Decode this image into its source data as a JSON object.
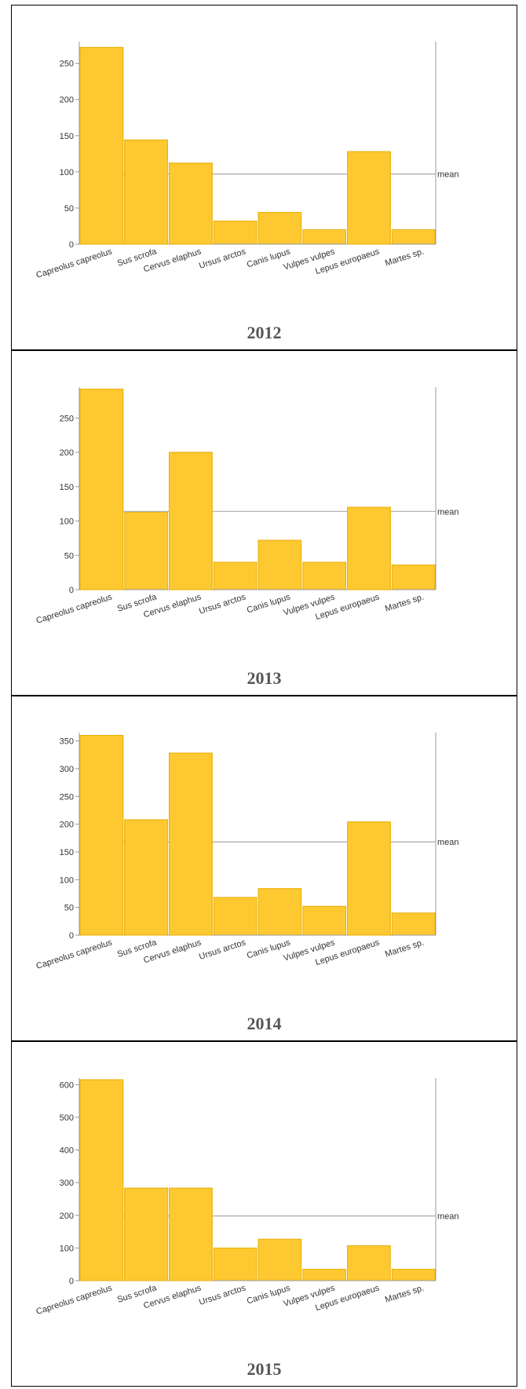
{
  "mean_label": "mean",
  "chart_data": [
    {
      "type": "bar",
      "title": "2012",
      "categories": [
        "Capreolus capreolus",
        "Sus scrofa",
        "Cervus elaphus",
        "Ursus arctos",
        "Canis lupus",
        "Vulpes vulpes",
        "Lepus europaeus",
        "Martes sp."
      ],
      "values": [
        272,
        144,
        112,
        32,
        44,
        20,
        128,
        20
      ],
      "mean": 97,
      "ylim": [
        0,
        280
      ],
      "yticks": [
        0,
        50,
        100,
        150,
        200,
        250
      ],
      "colors": {
        "bar": "#fdc830",
        "bar_stroke": "#e8b10a",
        "mean_line": "#aaaaaa"
      }
    },
    {
      "type": "bar",
      "title": "2013",
      "categories": [
        "Capreolus capreolus",
        "Sus scrofa",
        "Cervus elaphus",
        "Ursus arctos",
        "Canis lupus",
        "Vulpes vulpes",
        "Lepus europaeus",
        "Martes sp."
      ],
      "values": [
        292,
        113,
        200,
        40,
        72,
        40,
        120,
        36
      ],
      "mean": 114,
      "ylim": [
        0,
        295
      ],
      "yticks": [
        0,
        50,
        100,
        150,
        200,
        250
      ],
      "colors": {
        "bar": "#fdc830",
        "bar_stroke": "#e8b10a",
        "mean_line": "#aaaaaa"
      }
    },
    {
      "type": "bar",
      "title": "2014",
      "categories": [
        "Capreolus capreolus",
        "Sus scrofa",
        "Cervus elaphus",
        "Ursus arctos",
        "Canis lupus",
        "Vulpes vulpes",
        "Lepus europaeus",
        "Martes sp."
      ],
      "values": [
        360,
        208,
        328,
        68,
        84,
        52,
        204,
        40
      ],
      "mean": 168,
      "ylim": [
        0,
        365
      ],
      "yticks": [
        0,
        50,
        100,
        150,
        200,
        250,
        300,
        350
      ],
      "colors": {
        "bar": "#fdc830",
        "bar_stroke": "#e8b10a",
        "mean_line": "#aaaaaa"
      }
    },
    {
      "type": "bar",
      "title": "2015",
      "categories": [
        "Capreolus capreolus",
        "Sus scrofa",
        "Cervus elaphus",
        "Ursus arctos",
        "Canis lupus",
        "Vulpes vulpes",
        "Lepus europaeus",
        "Martes sp."
      ],
      "values": [
        615,
        283,
        283,
        100,
        127,
        35,
        107,
        35
      ],
      "mean": 198,
      "ylim": [
        0,
        620
      ],
      "yticks": [
        0,
        100,
        200,
        300,
        400,
        500,
        600
      ],
      "colors": {
        "bar": "#fdc830",
        "bar_stroke": "#e8b10a",
        "mean_line": "#aaaaaa"
      }
    }
  ]
}
